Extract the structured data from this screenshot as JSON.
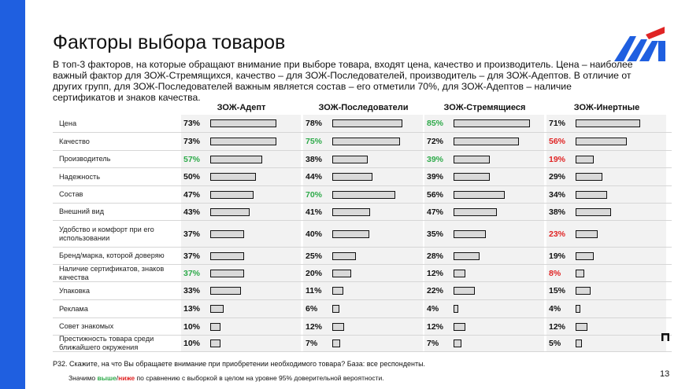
{
  "header": {
    "title": "Факторы выбора товаров",
    "intro": "В топ-3 факторов, на которые обращают внимание при выборе товара, входят цена, качество и производитель. Цена – наиболее важный фактор для ЗОЖ-Стремящихся, качество – для ЗОЖ-Последователей, производитель – для ЗОЖ-Адептов. В отличие от других групп, для ЗОЖ-Последователей важным является состав – его отметили 70%, для ЗОЖ-Адептов – наличие сертификатов и знаков качества."
  },
  "colors": {
    "accent": "#1f5fe0",
    "higher": "#2eaa4a",
    "lower": "#e02424",
    "bar_fill": "#d9d9d9",
    "cell_bg": "#f2f2f2"
  },
  "chart_data": {
    "type": "bar",
    "orientation": "horizontal",
    "value_unit": "%",
    "categories": [
      "Цена",
      "Качество",
      "Производитель",
      "Надежность",
      "Состав",
      "Внешний вид",
      "Удобство и комфорт при его использовании",
      "Бренд/марка, которой доверяю",
      "Наличие сертификатов, знаков качества",
      "Упаковка",
      "Реклама",
      "Совет знакомых",
      "Престижность товара среди ближайшего окружения"
    ],
    "series": [
      {
        "name": "ЗОЖ-Адепт",
        "values": [
          73,
          73,
          57,
          50,
          47,
          43,
          37,
          37,
          37,
          33,
          13,
          10,
          10
        ],
        "significance": [
          "",
          "",
          "higher",
          "",
          "",
          "",
          "",
          "",
          "higher",
          "",
          "",
          "",
          ""
        ]
      },
      {
        "name": "ЗОЖ-Последователи",
        "values": [
          78,
          75,
          38,
          44,
          70,
          41,
          40,
          25,
          20,
          11,
          6,
          12,
          7
        ],
        "significance": [
          "",
          "higher",
          "",
          "",
          "higher",
          "",
          "",
          "",
          "",
          "",
          "",
          "",
          ""
        ]
      },
      {
        "name": "ЗОЖ-Стремящиеся",
        "values": [
          85,
          72,
          39,
          39,
          56,
          47,
          35,
          28,
          12,
          22,
          4,
          12,
          7
        ],
        "significance": [
          "higher",
          "",
          "higher",
          "",
          "",
          "",
          "",
          "",
          "",
          "",
          "",
          "",
          ""
        ]
      },
      {
        "name": "ЗОЖ-Инертные",
        "values": [
          71,
          56,
          19,
          29,
          34,
          38,
          23,
          19,
          8,
          15,
          4,
          12,
          5
        ],
        "significance": [
          "",
          "lower",
          "lower",
          "",
          "",
          "",
          "lower",
          "",
          "lower",
          "",
          "",
          "",
          ""
        ]
      }
    ]
  },
  "footer": {
    "question": "P32. Скажите, на что Вы обращаете внимание при приобретении необходимого товара? База: все респонденты.",
    "legend_prefix": "Значимо ",
    "legend_higher": "выше",
    "legend_slash": "/",
    "legend_lower": "ниже",
    "legend_suffix": " по сравнению с выборкой в целом на уровне 95% доверительной вероятности.",
    "page_number": "13"
  }
}
